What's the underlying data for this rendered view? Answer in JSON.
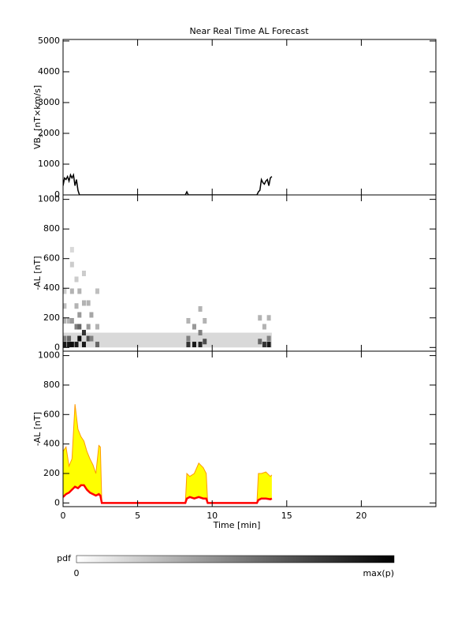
{
  "title": "Near Real Time AL Forecast",
  "colorbar": {
    "label": "pdf",
    "min_label": "0",
    "max_label": "max(p)"
  },
  "chart_data": [
    {
      "type": "line",
      "y_label": "VB",
      "y_label_sub": "s",
      "y_label_unit": "[nT×km/s]",
      "xlim": [
        0,
        25
      ],
      "xticks": [
        0,
        5,
        10,
        15,
        20
      ],
      "ylim": [
        0,
        5050
      ],
      "yticks": [
        0,
        1000,
        2000,
        3000,
        4000,
        5000
      ],
      "x": [
        0,
        0.1,
        0.2,
        0.3,
        0.4,
        0.5,
        0.6,
        0.7,
        0.8,
        0.9,
        1.0,
        1.1,
        1.5,
        8.2,
        8.3,
        8.4,
        13.0,
        13.1,
        13.2,
        13.3,
        13.4,
        13.5,
        13.6,
        13.7,
        13.8,
        13.9,
        14.0
      ],
      "series": [
        {
          "color": "#000000",
          "values": [
            300,
            550,
            500,
            600,
            450,
            650,
            550,
            650,
            300,
            500,
            150,
            0,
            0,
            0,
            100,
            0,
            0,
            100,
            150,
            500,
            400,
            350,
            450,
            500,
            300,
            550,
            600
          ]
        }
      ]
    },
    {
      "type": "heatmap",
      "y_label": "-AL [nT]",
      "xlim": [
        0,
        25
      ],
      "xticks": [
        0,
        5,
        10,
        15,
        20
      ],
      "ylim": [
        -25,
        1030
      ],
      "yticks": [
        0,
        200,
        400,
        600,
        800,
        1000
      ],
      "band": {
        "x": [
          0,
          14
        ],
        "y": [
          0,
          100
        ],
        "p": 0.15
      },
      "cells": {
        "x": [
          0.1,
          0.1,
          0.1,
          0.1,
          0.1,
          0.4,
          0.4,
          0.4,
          0.6,
          0.6,
          0.6,
          0.6,
          0.6,
          0.9,
          0.9,
          0.9,
          0.9,
          1.1,
          1.1,
          1.1,
          1.1,
          1.4,
          1.4,
          1.4,
          1.4,
          1.7,
          1.7,
          1.7,
          1.9,
          1.9,
          2.3,
          2.3,
          2.3,
          8.4,
          8.4,
          8.4,
          8.8,
          8.8,
          9.2,
          9.2,
          9.2,
          9.5,
          9.5,
          13.2,
          13.2,
          13.5,
          13.5,
          13.8,
          13.8,
          13.8
        ],
        "y": [
          380,
          280,
          180,
          60,
          20,
          180,
          60,
          20,
          660,
          560,
          380,
          180,
          20,
          460,
          280,
          140,
          20,
          380,
          220,
          140,
          60,
          500,
          300,
          100,
          20,
          300,
          140,
          60,
          220,
          60,
          380,
          140,
          20,
          180,
          60,
          20,
          140,
          20,
          260,
          100,
          20,
          180,
          40,
          200,
          40,
          140,
          20,
          200,
          60,
          20
        ],
        "p": [
          0.2,
          0.25,
          0.3,
          0.5,
          0.9,
          0.3,
          0.6,
          0.9,
          0.15,
          0.2,
          0.3,
          0.4,
          0.95,
          0.2,
          0.3,
          0.5,
          0.9,
          0.3,
          0.4,
          0.6,
          0.95,
          0.2,
          0.3,
          0.8,
          0.9,
          0.3,
          0.4,
          0.7,
          0.35,
          0.5,
          0.25,
          0.3,
          0.6,
          0.3,
          0.5,
          0.8,
          0.4,
          0.9,
          0.3,
          0.5,
          0.85,
          0.3,
          0.7,
          0.3,
          0.6,
          0.3,
          0.8,
          0.3,
          0.5,
          0.9
        ]
      }
    },
    {
      "type": "band",
      "y_label": "-AL [nT]",
      "x_label": "Time [min]",
      "xlim": [
        0,
        25
      ],
      "xticks": [
        0,
        5,
        10,
        15,
        20
      ],
      "ylim": [
        -25,
        1030
      ],
      "yticks": [
        0,
        200,
        400,
        600,
        800,
        1000
      ],
      "fill_color": "#ffff00",
      "x": [
        0,
        0.2,
        0.4,
        0.6,
        0.8,
        1.0,
        1.2,
        1.4,
        1.6,
        1.8,
        2.0,
        2.2,
        2.4,
        2.5,
        2.6,
        8.2,
        8.3,
        8.5,
        8.8,
        9.1,
        9.4,
        9.6,
        9.7,
        13.0,
        13.1,
        13.3,
        13.6,
        13.9,
        14.0
      ],
      "series": [
        {
          "color": "#ff9900",
          "values": [
            350,
            380,
            250,
            300,
            670,
            500,
            450,
            420,
            350,
            300,
            260,
            200,
            390,
            380,
            0,
            0,
            200,
            180,
            200,
            270,
            240,
            200,
            0,
            0,
            200,
            200,
            210,
            180,
            190
          ]
        },
        {
          "color": "#ff0000",
          "values": [
            40,
            60,
            70,
            90,
            110,
            100,
            120,
            120,
            90,
            70,
            60,
            50,
            60,
            50,
            0,
            0,
            30,
            40,
            30,
            40,
            30,
            30,
            0,
            0,
            20,
            30,
            30,
            25,
            30
          ]
        }
      ]
    }
  ]
}
